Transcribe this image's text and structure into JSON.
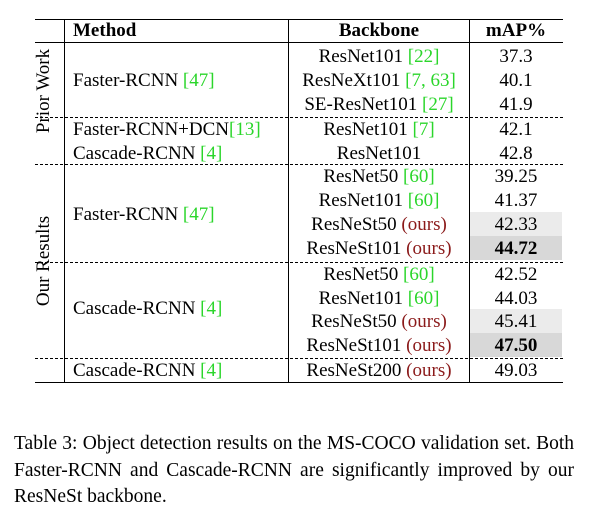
{
  "headers": {
    "method": "Method",
    "backbone": "Backbone",
    "map": "mAP%"
  },
  "groups": {
    "prior": "Prior Work",
    "ours": "Our Results"
  },
  "methods": {
    "m1": {
      "name": "Faster-RCNN",
      "cite": "[47]"
    },
    "m2": {
      "name": "Faster-RCNN+DCN",
      "cite": "[13]"
    },
    "m3": {
      "name": "Cascade-RCNN",
      "cite": "[4]"
    },
    "m4": {
      "name": "Faster-RCNN",
      "cite": "[47]"
    },
    "m5": {
      "name": "Cascade-RCNN",
      "cite": "[4]"
    },
    "m6": {
      "name": "Cascade-RCNN",
      "cite": "[4]"
    }
  },
  "rows": [
    {
      "backbone": "ResNet101",
      "cite": "[22]",
      "map": "37.3"
    },
    {
      "backbone": "ResNeXt101",
      "cite": "[7, 63]",
      "map": "40.1"
    },
    {
      "backbone": "SE-ResNet101",
      "cite": "[27]",
      "map": "41.9"
    },
    {
      "backbone": "ResNet101",
      "cite": "[7]",
      "map": "42.1"
    },
    {
      "backbone": "ResNet101",
      "cite": "",
      "map": "42.8"
    },
    {
      "backbone": "ResNet50",
      "cite": "[60]",
      "map": "39.25"
    },
    {
      "backbone": "ResNet101",
      "cite": "[60]",
      "map": "41.37"
    },
    {
      "backbone": "ResNeSt50",
      "ours": "(ours)",
      "map": "42.33"
    },
    {
      "backbone": "ResNeSt101",
      "ours": "(ours)",
      "map": "44.72"
    },
    {
      "backbone": "ResNet50",
      "cite": "[60]",
      "map": "42.52"
    },
    {
      "backbone": "ResNet101",
      "cite": "[60]",
      "map": "44.03"
    },
    {
      "backbone": "ResNeSt50",
      "ours": "(ours)",
      "map": "45.41"
    },
    {
      "backbone": "ResNeSt101",
      "ours": "(ours)",
      "map": "47.50"
    },
    {
      "backbone": "ResNeSt200",
      "ours": "(ours)",
      "map": "49.03"
    }
  ],
  "caption": "Table 3: Object detection results on the MS-COCO validation set. Both Faster-RCNN and Cascade-RCNN are significantly improved by our ResNeSt backbone."
}
